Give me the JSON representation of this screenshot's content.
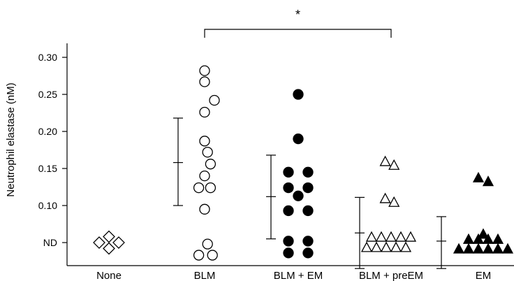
{
  "chart_data": {
    "type": "scatter",
    "ylabel": "Neutrophil elastase (nM)",
    "categories": [
      "None",
      "BLM",
      "BLM + EM",
      "BLM + preEM",
      "EM"
    ],
    "y_ticks": [
      {
        "label": "ND",
        "value": 0.05
      },
      {
        "label": "0.10",
        "value": 0.1
      },
      {
        "label": "0.15",
        "value": 0.15
      },
      {
        "label": "0.20",
        "value": 0.2
      },
      {
        "label": "0.25",
        "value": 0.25
      },
      {
        "label": "0.30",
        "value": 0.3
      }
    ],
    "ylim": [
      0.015,
      0.31
    ],
    "significance": {
      "from": "BLM",
      "to": "BLM + preEM",
      "label": "*"
    },
    "groups": [
      {
        "name": "None",
        "marker": "diamond-open",
        "points": [
          {
            "y": 0.058,
            "o": 0
          },
          {
            "y": 0.05,
            "o": -1
          },
          {
            "y": 0.05,
            "o": 1
          },
          {
            "y": 0.042,
            "o": 0
          }
        ],
        "summary": null
      },
      {
        "name": "BLM",
        "marker": "circle-open",
        "points": [
          {
            "y": 0.282,
            "o": 0
          },
          {
            "y": 0.267,
            "o": 0
          },
          {
            "y": 0.242,
            "o": 1
          },
          {
            "y": 0.226,
            "o": 0
          },
          {
            "y": 0.187,
            "o": 0
          },
          {
            "y": 0.172,
            "o": 0.3
          },
          {
            "y": 0.156,
            "o": 0.6
          },
          {
            "y": 0.14,
            "o": 0
          },
          {
            "y": 0.124,
            "o": -0.6
          },
          {
            "y": 0.124,
            "o": 0.6
          },
          {
            "y": 0.095,
            "o": 0
          },
          {
            "y": 0.048,
            "o": 0.3
          },
          {
            "y": 0.033,
            "o": -0.6
          },
          {
            "y": 0.033,
            "o": 0.8
          }
        ],
        "summary": {
          "mean": 0.158,
          "upper": 0.218,
          "lower": 0.1
        }
      },
      {
        "name": "BLM + EM",
        "marker": "circle-filled",
        "points": [
          {
            "y": 0.25,
            "o": 0
          },
          {
            "y": 0.19,
            "o": 0
          },
          {
            "y": 0.145,
            "o": -1
          },
          {
            "y": 0.145,
            "o": 1
          },
          {
            "y": 0.124,
            "o": -1
          },
          {
            "y": 0.124,
            "o": 1
          },
          {
            "y": 0.113,
            "o": 0
          },
          {
            "y": 0.093,
            "o": -1
          },
          {
            "y": 0.093,
            "o": 1
          },
          {
            "y": 0.052,
            "o": -1
          },
          {
            "y": 0.052,
            "o": 1
          },
          {
            "y": 0.036,
            "o": -1
          },
          {
            "y": 0.036,
            "o": 1
          }
        ],
        "summary": {
          "mean": 0.112,
          "upper": 0.168,
          "lower": 0.055
        }
      },
      {
        "name": "BLM + preEM",
        "marker": "triangle-open",
        "points": [
          {
            "y": 0.16,
            "o": -0.6
          },
          {
            "y": 0.155,
            "o": 0.3
          },
          {
            "y": 0.11,
            "o": -0.6
          },
          {
            "y": 0.105,
            "o": 0.3
          },
          {
            "y": 0.058,
            "o": -2
          },
          {
            "y": 0.058,
            "o": -1
          },
          {
            "y": 0.058,
            "o": 0
          },
          {
            "y": 0.058,
            "o": 1
          },
          {
            "y": 0.058,
            "o": 2
          },
          {
            "y": 0.044,
            "o": -2.5
          },
          {
            "y": 0.044,
            "o": -1.5
          },
          {
            "y": 0.044,
            "o": -0.5
          },
          {
            "y": 0.044,
            "o": 0.5
          },
          {
            "y": 0.044,
            "o": 1.5
          }
        ],
        "summary": {
          "mean": 0.063,
          "upper": 0.111,
          "lower": 0.015
        }
      },
      {
        "name": "EM",
        "marker": "triangle-filled",
        "points": [
          {
            "y": 0.138,
            "o": -0.5
          },
          {
            "y": 0.133,
            "o": 0.5
          },
          {
            "y": 0.062,
            "o": 0
          },
          {
            "y": 0.055,
            "o": -1.5
          },
          {
            "y": 0.055,
            "o": -0.5
          },
          {
            "y": 0.055,
            "o": 0.5
          },
          {
            "y": 0.055,
            "o": 1.5
          },
          {
            "y": 0.042,
            "o": -2.5
          },
          {
            "y": 0.042,
            "o": -1.5
          },
          {
            "y": 0.042,
            "o": -0.5
          },
          {
            "y": 0.042,
            "o": 0.5
          },
          {
            "y": 0.042,
            "o": 1.5
          },
          {
            "y": 0.042,
            "o": 2.5
          }
        ],
        "summary": {
          "mean": 0.052,
          "upper": 0.085,
          "lower": 0.015
        }
      }
    ]
  }
}
